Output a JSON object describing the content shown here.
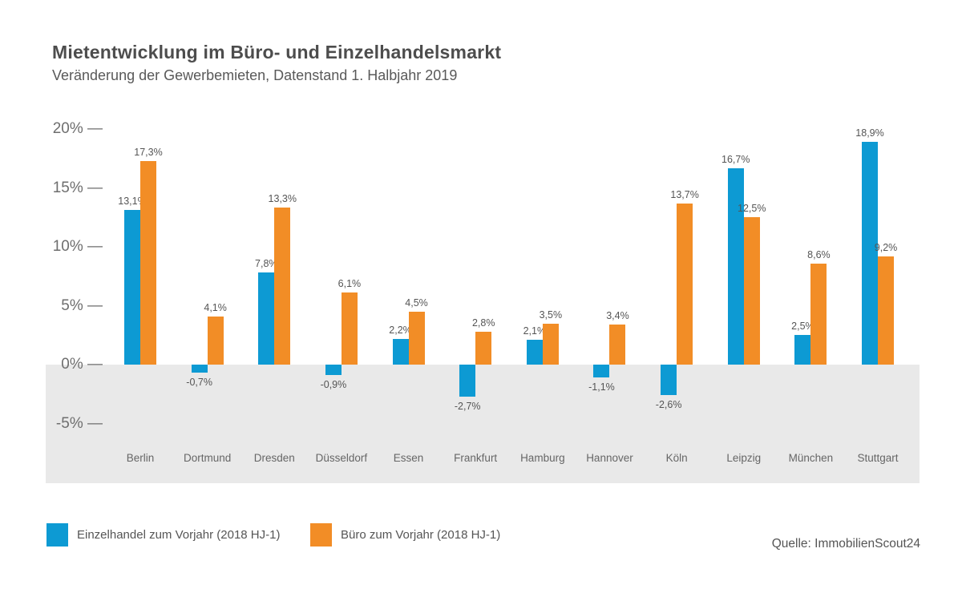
{
  "page": {
    "title": "Mietentwicklung im Büro- und Einzelhandelsmarkt",
    "subtitle": "Veränderung der Gewerbemieten, Datenstand 1. Halbjahr 2019",
    "source": "Quelle: ImmobilienScout24"
  },
  "legend": {
    "items": [
      {
        "label": "Einzelhandel zum Vorjahr (2018 HJ-1)",
        "color": "#0d9ad3"
      },
      {
        "label": "Büro zum Vorjahr (2018 HJ-1)",
        "color": "#f28d26"
      }
    ]
  },
  "chart_data": {
    "type": "bar",
    "title": "Mietentwicklung im Büro- und Einzelhandelsmarkt",
    "subtitle": "Veränderung der Gewerbemieten, Datenstand 1. Halbjahr 2019",
    "categories": [
      "Berlin",
      "Dortmund",
      "Dresden",
      "Düsseldorf",
      "Essen",
      "Frankfurt",
      "Hamburg",
      "Hannover",
      "Köln",
      "Leipzig",
      "München",
      "Stuttgart"
    ],
    "series": [
      {
        "name": "Einzelhandel zum Vorjahr (2018 HJ-1)",
        "color": "#0d9ad3",
        "values": [
          13.1,
          -0.7,
          7.8,
          -0.9,
          2.2,
          -2.7,
          2.1,
          -1.1,
          -2.6,
          16.7,
          2.5,
          18.9
        ],
        "labels": [
          "13,1%",
          "-0,7%",
          "7,8%",
          "-0,9%",
          "2,2%",
          "-2,7%",
          "2,1%",
          "-1,1%",
          "-2,6%",
          "16,7%",
          "2,5%",
          "18,9%"
        ]
      },
      {
        "name": "Büro zum Vorjahr (2018 HJ-1)",
        "color": "#f28d26",
        "values": [
          17.3,
          4.1,
          13.3,
          6.1,
          4.5,
          2.8,
          3.5,
          3.4,
          13.7,
          12.5,
          8.6,
          9.2
        ],
        "labels": [
          "17,3%",
          "4,1%",
          "13,3%",
          "6,1%",
          "4,5%",
          "2,8%",
          "3,5%",
          "3,4%",
          "13,7%",
          "12,5%",
          "8,6%",
          "9,2%"
        ]
      }
    ],
    "yticks": [
      {
        "label": "20%",
        "value": 20
      },
      {
        "label": "15%",
        "value": 15
      },
      {
        "label": "10%",
        "value": 10
      },
      {
        "label": "5%",
        "value": 5
      },
      {
        "label": "0%",
        "value": 0
      },
      {
        "label": "-5%",
        "value": -5
      }
    ],
    "ylim": [
      -10,
      21
    ],
    "xlabel": "",
    "ylabel": "",
    "grid": false,
    "negative_region_color": "#e9e9e9",
    "legend_position": "bottom-left"
  }
}
